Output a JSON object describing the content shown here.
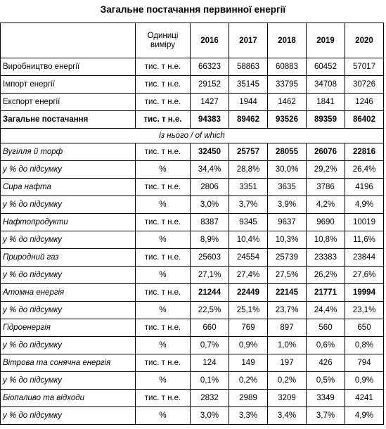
{
  "title": "Загальне постачання первинної енергії",
  "header": {
    "unit": "Одиниці виміру",
    "years": [
      "2016",
      "2017",
      "2018",
      "2019",
      "2020"
    ]
  },
  "subheader": "із нього / of which",
  "rows": [
    {
      "label": "Виробництво енергії",
      "unit": "тис. т н.е.",
      "values": [
        "66323",
        "58863",
        "60883",
        "60452",
        "57017"
      ],
      "style": "normal"
    },
    {
      "label": "Імпорт енергії",
      "unit": "тис. т н.е.",
      "values": [
        "29152",
        "35145",
        "33795",
        "34708",
        "30726"
      ],
      "style": "normal"
    },
    {
      "label": "Експорт енергії",
      "unit": "тис. т н.е.",
      "values": [
        "1427",
        "1944",
        "1462",
        "1841",
        "1246"
      ],
      "style": "normal"
    },
    {
      "label": "Загальне постачання",
      "unit": "тис. т н.е.",
      "values": [
        "94383",
        "89462",
        "93526",
        "89359",
        "86402"
      ],
      "style": "bold"
    }
  ],
  "sections": [
    {
      "label": "Вугілля й торф",
      "unit": "тис. т н.е.",
      "values": [
        "32450",
        "25757",
        "28055",
        "26076",
        "22816"
      ],
      "bold_values": true,
      "share": {
        "label": "у % до підсумку",
        "unit": "%",
        "values": [
          "34,4%",
          "28,8%",
          "30,0%",
          "29,2%",
          "26,4%"
        ]
      }
    },
    {
      "label": "Сира нафта",
      "unit": "тис. т н.е.",
      "values": [
        "2806",
        "3351",
        "3635",
        "3786",
        "4196"
      ],
      "bold_values": false,
      "share": {
        "label": "у % до підсумку",
        "unit": "%",
        "values": [
          "3,0%",
          "3,7%",
          "3,9%",
          "4,2%",
          "4,9%"
        ]
      }
    },
    {
      "label": "Нафтопродукти",
      "unit": "тис. т н.е.",
      "values": [
        "8387",
        "9345",
        "9637",
        "9690",
        "10019"
      ],
      "bold_values": false,
      "share": {
        "label": "у % до підсумку",
        "unit": "%",
        "values": [
          "8,9%",
          "10,4%",
          "10,3%",
          "10,8%",
          "11,6%"
        ]
      }
    },
    {
      "label": "Природний газ",
      "unit": "тис. т н.е.",
      "values": [
        "25603",
        "24554",
        "25739",
        "23383",
        "23844"
      ],
      "bold_values": false,
      "share": {
        "label": "у % до підсумку",
        "unit": "%",
        "values": [
          "27,1%",
          "27,4%",
          "27,5%",
          "26,2%",
          "27,6%"
        ]
      }
    },
    {
      "label": "Атомна енергія",
      "unit": "тис. т н.е.",
      "values": [
        "21244",
        "22449",
        "22145",
        "21771",
        "19994"
      ],
      "bold_values": true,
      "share": {
        "label": "у % до підсумку",
        "unit": "%",
        "values": [
          "22,5%",
          "25,1%",
          "23,7%",
          "24,4%",
          "23,1%"
        ]
      }
    },
    {
      "label": "Гідроенергія",
      "unit": "тис. т н.е.",
      "values": [
        "660",
        "769",
        "897",
        "560",
        "650"
      ],
      "bold_values": false,
      "share": {
        "label": "у % до підсумку",
        "unit": "%",
        "values": [
          "0,7%",
          "0,9%",
          "1,0%",
          "0,6%",
          "0,8%"
        ]
      }
    },
    {
      "label": "Вітрова та сонячна енергія",
      "unit": "тис. т н.е.",
      "values": [
        "124",
        "149",
        "197",
        "426",
        "794"
      ],
      "bold_values": false,
      "share": {
        "label": "у % до підсумку",
        "unit": "%",
        "values": [
          "0,1%",
          "0,2%",
          "0,2%",
          "0,5%",
          "0,9%"
        ]
      }
    },
    {
      "label": "Біопаливо та відходи",
      "unit": "тис. т н.е.",
      "values": [
        "2832",
        "2989",
        "3209",
        "3349",
        "4241"
      ],
      "bold_values": false,
      "share": {
        "label": "у % до підсумку",
        "unit": "%",
        "values": [
          "3,0%",
          "3,3%",
          "3,4%",
          "3,7%",
          "4,9%"
        ]
      }
    }
  ]
}
